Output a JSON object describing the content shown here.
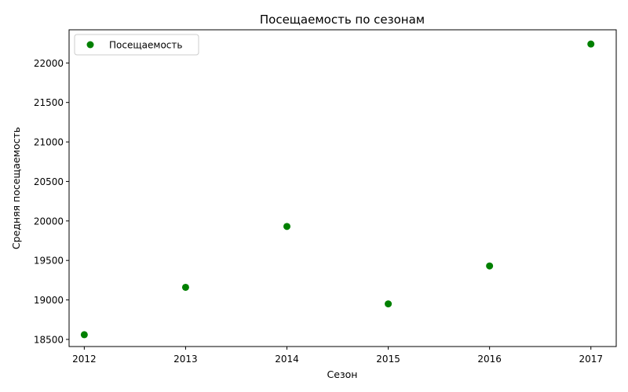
{
  "chart_data": {
    "type": "scatter",
    "title": "Посещаемость по сезонам",
    "xlabel": "Сезон",
    "ylabel": "Средняя посещаемость",
    "xlim": [
      2011.85,
      2017.25
    ],
    "ylim": [
      18410,
      22420
    ],
    "x_ticks": [
      2012,
      2013,
      2014,
      2015,
      2016,
      2017
    ],
    "y_ticks": [
      18500,
      19000,
      19500,
      20000,
      20500,
      21000,
      21500,
      22000
    ],
    "grid": false,
    "legend_position": "top-left",
    "series": [
      {
        "name": "Посещаемость",
        "color": "#008000",
        "marker": "circle",
        "x": [
          2012,
          2013,
          2014,
          2015,
          2016,
          2017
        ],
        "y": [
          18560,
          19160,
          19930,
          18950,
          19430,
          22240
        ]
      }
    ]
  }
}
